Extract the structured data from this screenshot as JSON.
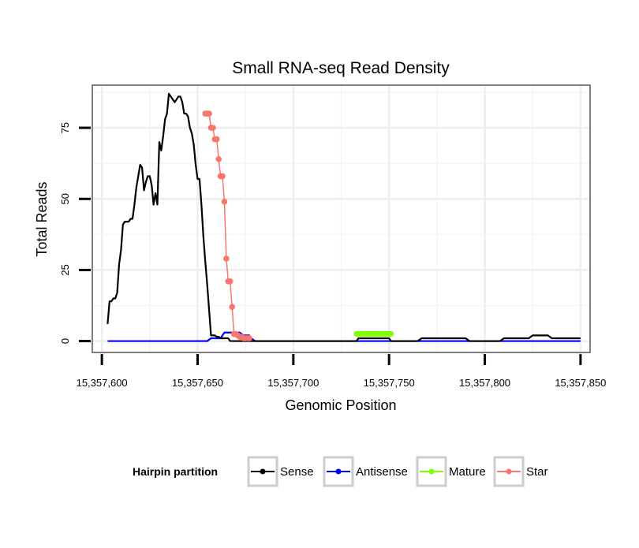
{
  "chart_data": {
    "type": "line",
    "title": "Small RNA-seq Read Density",
    "xlabel": "Genomic Position",
    "ylabel": "Total Reads",
    "xlim": [
      15357595,
      15357855
    ],
    "ylim": [
      -4,
      90
    ],
    "x_ticks": [
      15357600,
      15357650,
      15357700,
      15357750,
      15357800,
      15357850
    ],
    "x_tick_labels": [
      "15,357,600",
      "15,357,650",
      "15,357,700",
      "15,357,750",
      "15,357,800",
      "15,357,850"
    ],
    "y_ticks": [
      0,
      25,
      50,
      75
    ],
    "y_tick_labels": [
      "0",
      "25",
      "50",
      "75"
    ],
    "grid": true,
    "legend": {
      "title": "Hairpin partition",
      "position": "bottom",
      "entries": [
        "Sense",
        "Antisense",
        "Mature",
        "Star"
      ]
    },
    "series": [
      {
        "name": "Sense",
        "color": "#000000",
        "markers": false,
        "x": [
          15357603,
          15357604,
          15357605,
          15357606,
          15357607,
          15357608,
          15357609,
          15357610,
          15357611,
          15357612,
          15357613,
          15357614,
          15357615,
          15357616,
          15357617,
          15357618,
          15357619,
          15357620,
          15357621,
          15357622,
          15357623,
          15357624,
          15357625,
          15357626,
          15357627,
          15357628,
          15357629,
          15357630,
          15357631,
          15357632,
          15357633,
          15357634,
          15357635,
          15357636,
          15357637,
          15357638,
          15357639,
          15357640,
          15357641,
          15357642,
          15357643,
          15357644,
          15357645,
          15357646,
          15357647,
          15357648,
          15357649,
          15357650,
          15357651,
          15357652,
          15357653,
          15357654,
          15357655,
          15357656,
          15357657,
          15357658,
          15357659,
          15357660,
          15357661,
          15357662,
          15357663,
          15357664,
          15357665,
          15357666,
          15357667,
          15357668,
          15357669,
          15357670,
          15357671,
          15357672,
          15357673,
          15357674,
          15357675,
          15357676,
          15357677,
          15357678,
          15357679,
          15357680,
          15357700,
          15357733,
          15357734,
          15357750,
          15357751,
          15357765,
          15357767,
          15357790,
          15357792,
          15357808,
          15357810,
          15357823,
          15357825,
          15357833,
          15357835,
          15357850
        ],
        "y": [
          6,
          14,
          14,
          15,
          15,
          17,
          27,
          32,
          41,
          42,
          42,
          42,
          43,
          43,
          48,
          54,
          58,
          62,
          61,
          53,
          56,
          58,
          58,
          55,
          48,
          52,
          48,
          70,
          67,
          72,
          78,
          80,
          87,
          86,
          85,
          84,
          85,
          86,
          86,
          84,
          80,
          80,
          79,
          75,
          73,
          69,
          62,
          57,
          57,
          48,
          37,
          28,
          20,
          11,
          2,
          2,
          2,
          1.5,
          1.5,
          1,
          1,
          1,
          1,
          1,
          0,
          0,
          0,
          0,
          0,
          0,
          0,
          0,
          0,
          0,
          0,
          0,
          0,
          0,
          0,
          0,
          1,
          1,
          0,
          0,
          1,
          1,
          0,
          0,
          1,
          1,
          2,
          2,
          1,
          1
        ]
      },
      {
        "name": "Antisense",
        "color": "#0000ff",
        "markers": false,
        "x": [
          15357603,
          15357655,
          15357657,
          15357662,
          15357664,
          15357672,
          15357674,
          15357677,
          15357678,
          15357680,
          15357850
        ],
        "y": [
          0,
          0,
          1,
          1,
          3,
          3,
          2,
          2,
          1,
          0,
          0
        ]
      },
      {
        "name": "Mature",
        "color": "#7fff00",
        "markers": false,
        "x": [
          15357733,
          15357735,
          15357740,
          15357745,
          15357750,
          15357751
        ],
        "y": [
          2.5,
          2.5,
          2.5,
          2.5,
          2.5,
          2.5
        ]
      },
      {
        "name": "Star",
        "color": "#f8766d",
        "markers": true,
        "x": [
          15357654,
          15357655,
          15357656,
          15357657,
          15357658,
          15357659,
          15357660,
          15357661,
          15357662,
          15357663,
          15357664,
          15357665,
          15357666,
          15357667,
          15357668,
          15357669,
          15357670,
          15357671,
          15357672,
          15357673,
          15357674,
          15357675,
          15357676,
          15357677
        ],
        "y": [
          80,
          80,
          80,
          75,
          75,
          71,
          71,
          64,
          58,
          58,
          49,
          29,
          21,
          21,
          12,
          2.5,
          2.5,
          2,
          1.5,
          1.5,
          1,
          1,
          1,
          1
        ]
      }
    ]
  }
}
